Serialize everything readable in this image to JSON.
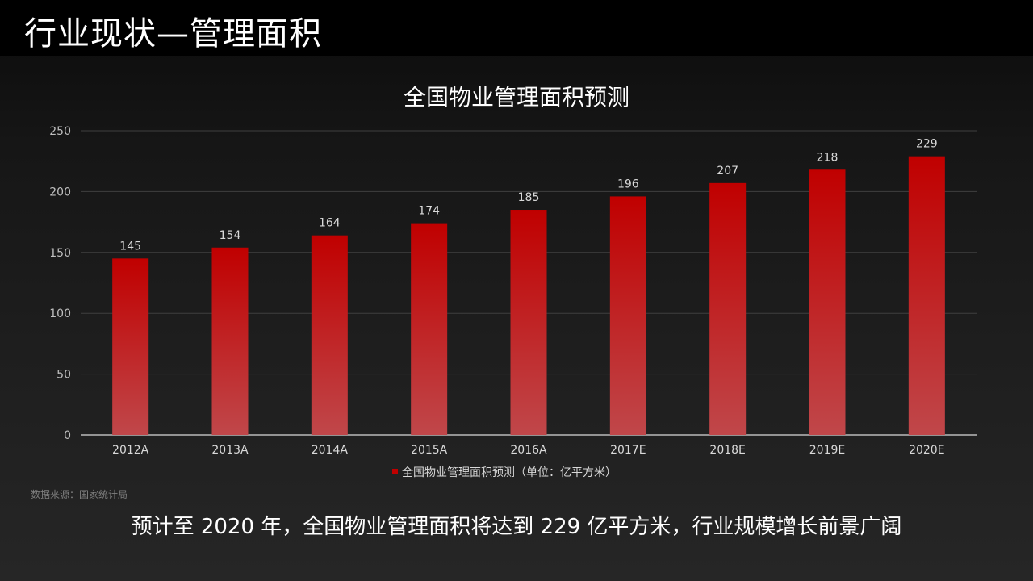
{
  "page": {
    "title": "行业现状—管理面积",
    "source_note": "数据来源：国家统计局",
    "conclusion": "预计至 2020 年，全国物业管理面积将达到 229 亿平方米，行业规模增长前景广阔"
  },
  "colors": {
    "bar_top": "#c00000",
    "bar_bottom": "#c0474a",
    "grid": "#3f3f3f",
    "axis_text": "#bfbfbf",
    "label_text": "#d9d9d9",
    "title_text": "#ffffff"
  },
  "chart_data": {
    "type": "bar",
    "title": "全国物业管理面积预测",
    "categories": [
      "2012A",
      "2013A",
      "2014A",
      "2015A",
      "2016A",
      "2017E",
      "2018E",
      "2019E",
      "2020E"
    ],
    "series": [
      {
        "name": "全国物业管理面积预测（单位：亿平方米）",
        "values": [
          145,
          154,
          164,
          174,
          185,
          196,
          207,
          218,
          229
        ]
      }
    ],
    "ylim": [
      0,
      250
    ],
    "yticks": [
      "0",
      "50",
      "100",
      "150",
      "200",
      "250"
    ],
    "data_labels": [
      "145",
      "154",
      "164",
      "174",
      "185",
      "196",
      "207",
      "218",
      "229"
    ],
    "grid": true,
    "legend_position": "bottom"
  }
}
